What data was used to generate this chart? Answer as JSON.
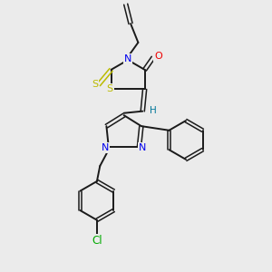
{
  "background_color": "#ebebeb",
  "bond_color": "#1a1a1a",
  "atom_colors": {
    "N": "#0000ee",
    "O": "#ee0000",
    "S_yellow": "#bbbb00",
    "Cl": "#00aa00",
    "H": "#007799",
    "C": "#1a1a1a"
  },
  "figsize": [
    3.0,
    3.0
  ],
  "dpi": 100
}
